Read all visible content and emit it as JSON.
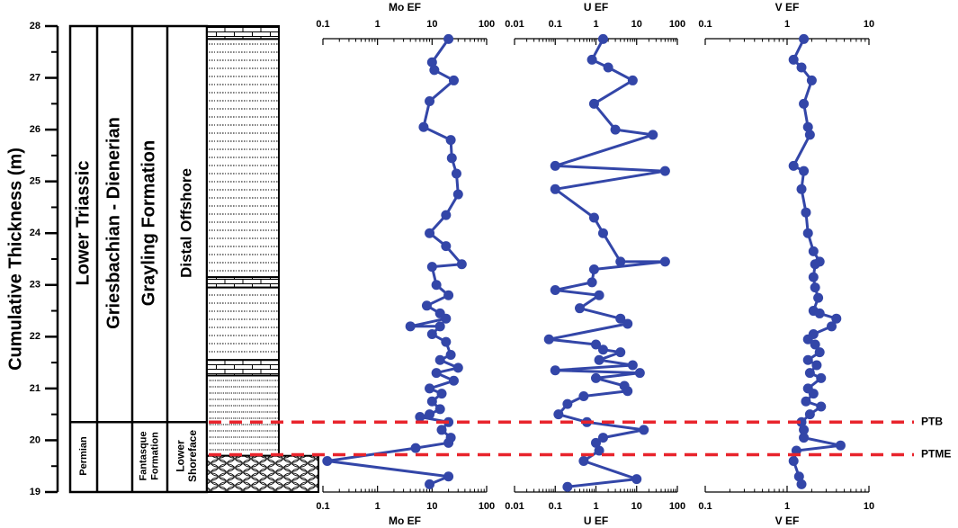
{
  "colors": {
    "series": "#3346A8",
    "marker": "#3346A8",
    "boundary": "#E8242C",
    "ink": "#000000"
  },
  "y_axis": {
    "title": "Cumulative Thickness (m)",
    "min": 19,
    "max": 28,
    "tick_labels": [
      "19",
      "20",
      "21",
      "22",
      "23",
      "24",
      "25",
      "26",
      "27",
      "28"
    ]
  },
  "stratigraphy": {
    "series_upper": "Lower Triassic",
    "series_lower": "Permian",
    "stage_upper": "Griesbachian - Dienerian",
    "formation_upper": "Grayling Formation",
    "formation_lower": "Fantasque Formation",
    "facies_upper": "Distal Offshore",
    "facies_lower": "Lower Shoreface",
    "lithology": [
      {
        "top": 28.0,
        "base": 27.75,
        "pattern": "limestone"
      },
      {
        "top": 27.75,
        "base": 23.15,
        "pattern": "mudstone"
      },
      {
        "top": 23.15,
        "base": 22.95,
        "pattern": "limestone"
      },
      {
        "top": 22.95,
        "base": 21.55,
        "pattern": "mudstone"
      },
      {
        "top": 21.55,
        "base": 21.25,
        "pattern": "limestone"
      },
      {
        "top": 21.25,
        "base": 19.7,
        "pattern": "siltstone"
      },
      {
        "top": 19.7,
        "base": 19.0,
        "pattern": "chert"
      }
    ]
  },
  "boundaries": [
    {
      "label": "PTB",
      "depth": 20.35
    },
    {
      "label": "PTME",
      "depth": 19.72
    }
  ],
  "chart_data": [
    {
      "type": "line",
      "title": "Mo EF",
      "xscale": "log",
      "xlim": [
        0.1,
        100
      ],
      "x_tick_labels": [
        "0.1",
        "1",
        "10",
        "100"
      ],
      "points": [
        {
          "x": 20,
          "y": 27.75
        },
        {
          "x": 10,
          "y": 27.3
        },
        {
          "x": 11,
          "y": 27.15
        },
        {
          "x": 25,
          "y": 26.95
        },
        {
          "x": 9,
          "y": 26.55
        },
        {
          "x": 7,
          "y": 26.05
        },
        {
          "x": 22,
          "y": 25.8
        },
        {
          "x": 23,
          "y": 25.45
        },
        {
          "x": 28,
          "y": 25.15
        },
        {
          "x": 30,
          "y": 24.75
        },
        {
          "x": 18,
          "y": 24.35
        },
        {
          "x": 9,
          "y": 24.0
        },
        {
          "x": 18,
          "y": 23.75
        },
        {
          "x": 35,
          "y": 23.4
        },
        {
          "x": 10,
          "y": 23.35
        },
        {
          "x": 12,
          "y": 23.0
        },
        {
          "x": 20,
          "y": 22.8
        },
        {
          "x": 8,
          "y": 22.6
        },
        {
          "x": 14,
          "y": 22.45
        },
        {
          "x": 18,
          "y": 22.35
        },
        {
          "x": 4,
          "y": 22.2
        },
        {
          "x": 14,
          "y": 22.2
        },
        {
          "x": 10,
          "y": 22.05
        },
        {
          "x": 18,
          "y": 21.9
        },
        {
          "x": 22,
          "y": 21.65
        },
        {
          "x": 14,
          "y": 21.55
        },
        {
          "x": 30,
          "y": 21.4
        },
        {
          "x": 12,
          "y": 21.3
        },
        {
          "x": 25,
          "y": 21.15
        },
        {
          "x": 9,
          "y": 21.0
        },
        {
          "x": 15,
          "y": 20.9
        },
        {
          "x": 10,
          "y": 20.75
        },
        {
          "x": 14,
          "y": 20.6
        },
        {
          "x": 9,
          "y": 20.5
        },
        {
          "x": 6,
          "y": 20.45
        },
        {
          "x": 20,
          "y": 20.35
        },
        {
          "x": 15,
          "y": 20.2
        },
        {
          "x": 22,
          "y": 20.05
        },
        {
          "x": 20,
          "y": 19.95
        },
        {
          "x": 5,
          "y": 19.85
        },
        {
          "x": 0.12,
          "y": 19.6
        },
        {
          "x": 20,
          "y": 19.3
        },
        {
          "x": 9,
          "y": 19.15
        }
      ]
    },
    {
      "type": "line",
      "title": "U EF",
      "xscale": "log",
      "xlim": [
        0.01,
        100
      ],
      "x_tick_labels": [
        "0.01",
        "0.1",
        "1",
        "10",
        "100"
      ],
      "points": [
        {
          "x": 1.5,
          "y": 27.75
        },
        {
          "x": 0.8,
          "y": 27.35
        },
        {
          "x": 2,
          "y": 27.2
        },
        {
          "x": 8,
          "y": 26.95
        },
        {
          "x": 0.9,
          "y": 26.5
        },
        {
          "x": 3,
          "y": 26.0
        },
        {
          "x": 25,
          "y": 25.9
        },
        {
          "x": 0.1,
          "y": 25.3
        },
        {
          "x": 50,
          "y": 25.2
        },
        {
          "x": 0.1,
          "y": 24.85
        },
        {
          "x": 0.9,
          "y": 24.3
        },
        {
          "x": 1.5,
          "y": 24.0
        },
        {
          "x": 4,
          "y": 23.45
        },
        {
          "x": 50,
          "y": 23.45
        },
        {
          "x": 0.9,
          "y": 23.3
        },
        {
          "x": 0.8,
          "y": 23.05
        },
        {
          "x": 0.1,
          "y": 22.9
        },
        {
          "x": 1.2,
          "y": 22.8
        },
        {
          "x": 0.4,
          "y": 22.55
        },
        {
          "x": 4,
          "y": 22.35
        },
        {
          "x": 6,
          "y": 22.25
        },
        {
          "x": 0.07,
          "y": 21.95
        },
        {
          "x": 1,
          "y": 21.85
        },
        {
          "x": 1.5,
          "y": 21.75
        },
        {
          "x": 4,
          "y": 21.7
        },
        {
          "x": 1.2,
          "y": 21.55
        },
        {
          "x": 8,
          "y": 21.45
        },
        {
          "x": 0.1,
          "y": 21.35
        },
        {
          "x": 12,
          "y": 21.3
        },
        {
          "x": 1,
          "y": 21.2
        },
        {
          "x": 5,
          "y": 21.05
        },
        {
          "x": 6,
          "y": 20.95
        },
        {
          "x": 0.5,
          "y": 20.85
        },
        {
          "x": 0.2,
          "y": 20.7
        },
        {
          "x": 0.12,
          "y": 20.5
        },
        {
          "x": 0.6,
          "y": 20.35
        },
        {
          "x": 15,
          "y": 20.2
        },
        {
          "x": 1.5,
          "y": 20.05
        },
        {
          "x": 1,
          "y": 19.95
        },
        {
          "x": 1.2,
          "y": 19.8
        },
        {
          "x": 0.5,
          "y": 19.6
        },
        {
          "x": 10,
          "y": 19.25
        },
        {
          "x": 0.2,
          "y": 19.1
        }
      ]
    },
    {
      "type": "line",
      "title": "V EF",
      "xscale": "log",
      "xlim": [
        0.1,
        10
      ],
      "x_tick_labels": [
        "0.1",
        "1",
        "10"
      ],
      "points": [
        {
          "x": 1.6,
          "y": 27.75
        },
        {
          "x": 1.2,
          "y": 27.35
        },
        {
          "x": 1.5,
          "y": 27.2
        },
        {
          "x": 2,
          "y": 26.95
        },
        {
          "x": 1.6,
          "y": 26.5
        },
        {
          "x": 1.8,
          "y": 26.05
        },
        {
          "x": 1.9,
          "y": 25.9
        },
        {
          "x": 1.2,
          "y": 25.3
        },
        {
          "x": 1.6,
          "y": 25.2
        },
        {
          "x": 1.5,
          "y": 24.85
        },
        {
          "x": 1.7,
          "y": 24.4
        },
        {
          "x": 1.8,
          "y": 24.0
        },
        {
          "x": 2.1,
          "y": 23.65
        },
        {
          "x": 2.5,
          "y": 23.45
        },
        {
          "x": 2.2,
          "y": 23.4
        },
        {
          "x": 2.1,
          "y": 23.15
        },
        {
          "x": 2.2,
          "y": 22.95
        },
        {
          "x": 2.4,
          "y": 22.75
        },
        {
          "x": 2.1,
          "y": 22.5
        },
        {
          "x": 2.5,
          "y": 22.45
        },
        {
          "x": 4,
          "y": 22.35
        },
        {
          "x": 3.5,
          "y": 22.2
        },
        {
          "x": 2.1,
          "y": 22.05
        },
        {
          "x": 1.8,
          "y": 21.95
        },
        {
          "x": 2.2,
          "y": 21.85
        },
        {
          "x": 2.5,
          "y": 21.7
        },
        {
          "x": 1.8,
          "y": 21.55
        },
        {
          "x": 2.3,
          "y": 21.45
        },
        {
          "x": 1.9,
          "y": 21.3
        },
        {
          "x": 2.6,
          "y": 21.2
        },
        {
          "x": 1.8,
          "y": 21.0
        },
        {
          "x": 2.1,
          "y": 20.9
        },
        {
          "x": 1.7,
          "y": 20.75
        },
        {
          "x": 2.6,
          "y": 20.65
        },
        {
          "x": 1.9,
          "y": 20.5
        },
        {
          "x": 1.5,
          "y": 20.35
        },
        {
          "x": 1.6,
          "y": 20.2
        },
        {
          "x": 1.6,
          "y": 20.05
        },
        {
          "x": 4.5,
          "y": 19.9
        },
        {
          "x": 1.3,
          "y": 19.8
        },
        {
          "x": 1.2,
          "y": 19.6
        },
        {
          "x": 1.4,
          "y": 19.3
        },
        {
          "x": 1.5,
          "y": 19.15
        }
      ]
    }
  ]
}
